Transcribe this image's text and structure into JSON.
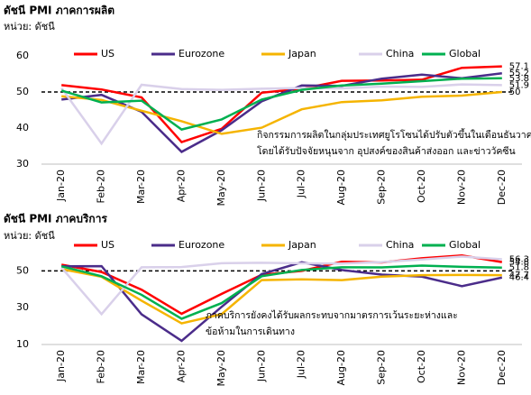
{
  "chart_data": [
    {
      "type": "line",
      "title": "ดัชนี PMI ภาคการผลิต",
      "y_label": "หน่วย: ดัชนี",
      "categories": [
        "Jan-20",
        "Feb-20",
        "Mar-20",
        "Apr-20",
        "May-20",
        "Jun-20",
        "Jul-20",
        "Aug-20",
        "Sep-20",
        "Oct-20",
        "Nov-20",
        "Dec-20"
      ],
      "ylim": [
        30,
        60
      ],
      "yticks": [
        30,
        40,
        50,
        60
      ],
      "reference_line": 50,
      "annotation": [
        "กิจกรรมการผลิตในกลุ่มประเทศยูโรโซนได้ปรับตัวขึ้นในเดือนธันวาคม",
        "โดยได้รับปัจจัยหนุนจาก อุปสงค์ของสินค้าส่งออก และข่าววัคซีน"
      ],
      "series": [
        {
          "name": "US",
          "color": "#ff0000",
          "values": [
            51.9,
            50.7,
            48.5,
            36.1,
            39.8,
            49.8,
            50.9,
            53.1,
            53.2,
            53.4,
            56.7,
            57.1
          ]
        },
        {
          "name": "Eurozone",
          "color": "#4b2c8a",
          "values": [
            47.9,
            49.2,
            44.5,
            33.4,
            39.4,
            47.4,
            51.8,
            51.7,
            53.7,
            54.8,
            53.8,
            55.2
          ]
        },
        {
          "name": "Japan",
          "color": "#f5b400",
          "values": [
            48.8,
            47.8,
            44.8,
            41.9,
            38.4,
            40.1,
            45.2,
            47.2,
            47.7,
            48.7,
            49.0,
            50
          ]
        },
        {
          "name": "China",
          "color": "#d9d0ea",
          "values": [
            51.1,
            35.7,
            52.0,
            50.8,
            50.6,
            50.9,
            51.1,
            51.0,
            51.5,
            51.4,
            52.1,
            51.9
          ]
        },
        {
          "name": "Global",
          "color": "#00b050",
          "values": [
            50.4,
            47.1,
            47.6,
            39.6,
            42.4,
            47.9,
            50.6,
            51.8,
            52.3,
            53.0,
            53.7,
            53.8
          ]
        }
      ]
    },
    {
      "type": "line",
      "title": "ดัชนี PMI ภาคบริการ",
      "y_label": "หน่วย: ดัชนี",
      "categories": [
        "Jan-20",
        "Feb-20",
        "Mar-20",
        "Apr-20",
        "May-20",
        "Jun-20",
        "Jul-20",
        "Aug-20",
        "Sep-20",
        "Oct-20",
        "Nov-20",
        "Dec-20"
      ],
      "ylim": [
        10,
        60
      ],
      "yticks": [
        10,
        30,
        50
      ],
      "reference_line": 50,
      "annotation": [
        "ภาคบริการยังคงได้รับผลกระทบจากมาตรการเว้นระยะห่างและ",
        "ข้อห้ามในการเดินทาง"
      ],
      "series": [
        {
          "name": "US",
          "color": "#ff0000",
          "values": [
            53.4,
            49.4,
            39.8,
            26.7,
            37.5,
            47.9,
            50.0,
            55.0,
            54.6,
            56.9,
            58.4,
            54.8
          ]
        },
        {
          "name": "Eurozone",
          "color": "#4b2c8a",
          "values": [
            52.5,
            52.6,
            26.4,
            12.0,
            30.5,
            48.3,
            54.7,
            50.5,
            48.0,
            46.9,
            41.7,
            46.4
          ]
        },
        {
          "name": "Japan",
          "color": "#f5b400",
          "values": [
            51.0,
            46.8,
            33.8,
            21.5,
            26.5,
            45.0,
            45.4,
            45.0,
            46.9,
            47.7,
            47.8,
            47.7
          ]
        },
        {
          "name": "China",
          "color": "#d9d0ea",
          "values": [
            51.8,
            26.5,
            52.0,
            52.1,
            54.2,
            54.4,
            54.1,
            54.0,
            54.8,
            56.2,
            57.8,
            56.3
          ]
        },
        {
          "name": "Global",
          "color": "#00b050",
          "values": [
            52.5,
            47.1,
            37.0,
            24.0,
            32.5,
            47.1,
            50.5,
            52.0,
            51.9,
            52.9,
            52.2,
            51.8
          ]
        }
      ]
    }
  ]
}
